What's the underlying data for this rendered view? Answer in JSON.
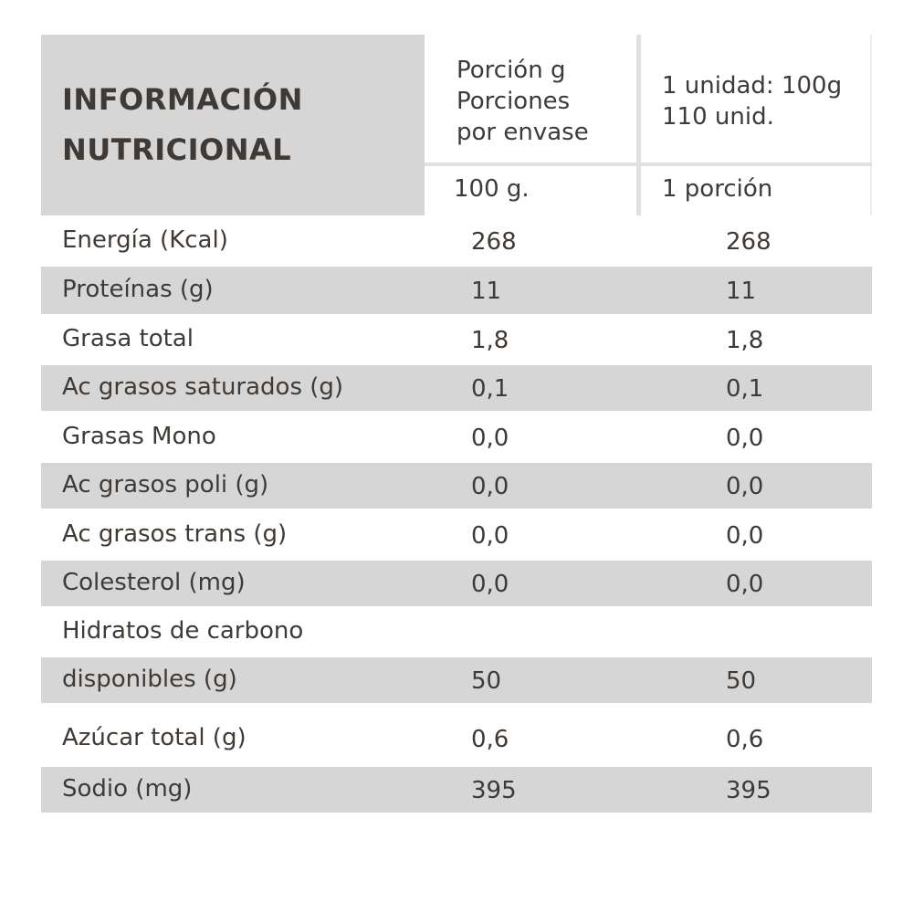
{
  "header": {
    "title": [
      "INFORMACIÓN",
      "NUTRICIONAL"
    ],
    "columns": [
      {
        "lines": [
          "Porción g",
          "Porciones",
          "por envase"
        ],
        "sub": "100 g."
      },
      {
        "lines": [
          "1 unidad: 100g",
          "110 unid."
        ],
        "sub": "1 porción"
      }
    ]
  },
  "table": {
    "rows": [
      {
        "label": "Energía (Kcal)",
        "values": [
          "268",
          "268"
        ]
      },
      {
        "label": "Proteínas (g)",
        "values": [
          "11",
          "11"
        ]
      },
      {
        "label": "Grasa total",
        "values": [
          "1,8",
          "1,8"
        ]
      },
      {
        "label": "Ac grasos saturados (g)",
        "values": [
          "0,1",
          "0,1"
        ]
      },
      {
        "label": "Grasas Mono",
        "values": [
          "0,0",
          "0,0"
        ]
      },
      {
        "label": "Ac grasos poli (g)",
        "values": [
          "0,0",
          "0,0"
        ]
      },
      {
        "label": "Ac grasos trans (g)",
        "values": [
          "0,0",
          "0,0"
        ]
      },
      {
        "label": "Colesterol (mg)",
        "values": [
          "0,0",
          "0,0"
        ]
      },
      {
        "label": "Hidratos de carbono"
      },
      {
        "label": "disponibles (g)",
        "values": [
          "50",
          "50"
        ]
      },
      {
        "label": "Azúcar total (g)",
        "values": [
          "0,6",
          "0,6"
        ]
      },
      {
        "label": "Sodio (mg)",
        "values": [
          "395",
          "395"
        ]
      }
    ]
  }
}
